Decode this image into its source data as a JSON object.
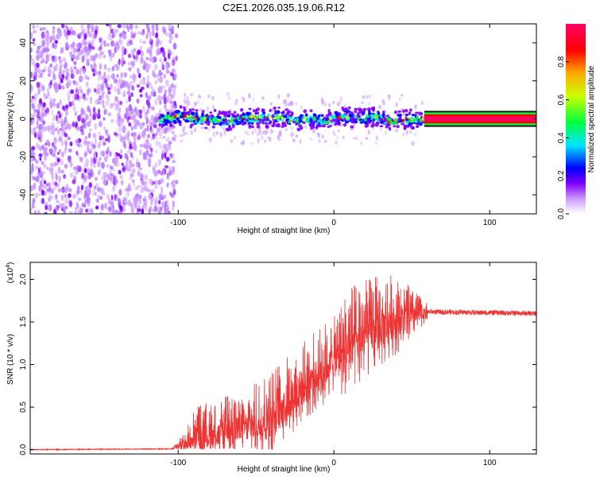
{
  "figure_title": "C2E1.2026.035.19.06.R12",
  "chart_data": [
    {
      "type": "heatmap",
      "title": "C2E1.2026.035.19.06.R12",
      "xlabel": "Height of straight line (km)",
      "ylabel": "Frequency (Hz)",
      "xlim": [
        -195,
        130
      ],
      "ylim": [
        -50,
        50
      ],
      "x_ticks": [
        -100,
        0,
        100
      ],
      "x_tick_labels": [
        "-100",
        "0",
        "100"
      ],
      "y_ticks": [
        -40,
        -20,
        0,
        20,
        40
      ],
      "y_tick_labels": [
        "-40",
        "-20",
        "0",
        "20",
        "40"
      ],
      "noise_region_x": [
        -195,
        -103
      ],
      "signal_region_x": [
        -112,
        58
      ],
      "straight_line_region_x": [
        58,
        130
      ],
      "signal_center_frequency": 0,
      "colorbar": {
        "label": "Normalized spectral amplitude",
        "range": [
          0,
          1
        ],
        "ticks": [
          0,
          0.2,
          0.4,
          0.6,
          0.8
        ],
        "tick_labels": [
          "0.0",
          "0.2",
          "0.4",
          "0.6",
          "0.8"
        ],
        "colors": [
          "#ffffff",
          "#cc99ff",
          "#8000ff",
          "#0000ff",
          "#00e5ff",
          "#00ff40",
          "#ccff00",
          "#ffaa00",
          "#ff0000",
          "#ff0066"
        ]
      }
    },
    {
      "type": "line",
      "xlabel": "Height of straight line (km)",
      "ylabel": "SNR (10 * v/v)",
      "y_multiplier_label": "(x10",
      "y_multiplier_exponent": "4",
      "xlim": [
        -195,
        130
      ],
      "ylim": [
        -0.05,
        2.2
      ],
      "x_ticks": [
        -100,
        0,
        100
      ],
      "x_tick_labels": [
        "-100",
        "0",
        "100"
      ],
      "y_ticks": [
        0,
        0.5,
        1,
        1.5,
        2
      ],
      "y_tick_labels": [
        "0.0",
        "0.5",
        "1.0",
        "1.5",
        "2.0"
      ],
      "line_color": "#ee3333",
      "series": [
        {
          "name": "SNR",
          "trend": [
            [
              -195,
              0.0
            ],
            [
              -104,
              0.01
            ],
            [
              -96,
              0.08
            ],
            [
              -88,
              0.2
            ],
            [
              -80,
              0.22
            ],
            [
              -70,
              0.25
            ],
            [
              -60,
              0.3
            ],
            [
              -50,
              0.35
            ],
            [
              -40,
              0.45
            ],
            [
              -30,
              0.62
            ],
            [
              -20,
              0.8
            ],
            [
              -10,
              0.95
            ],
            [
              0,
              1.1
            ],
            [
              10,
              1.28
            ],
            [
              20,
              1.42
            ],
            [
              30,
              1.52
            ],
            [
              40,
              1.58
            ],
            [
              50,
              1.6
            ],
            [
              60,
              1.62
            ],
            [
              130,
              1.6
            ]
          ],
          "peak_envelope": [
            [
              -104,
              0.02
            ],
            [
              -96,
              0.2
            ],
            [
              -88,
              0.55
            ],
            [
              -80,
              0.57
            ],
            [
              -70,
              0.65
            ],
            [
              -60,
              0.6
            ],
            [
              -50,
              0.8
            ],
            [
              -40,
              1.0
            ],
            [
              -30,
              1.1
            ],
            [
              -20,
              1.3
            ],
            [
              -10,
              1.45
            ],
            [
              0,
              1.55
            ],
            [
              10,
              1.95
            ],
            [
              20,
              2.0
            ],
            [
              30,
              2.1
            ],
            [
              40,
              2.05
            ],
            [
              50,
              1.9
            ],
            [
              60,
              1.72
            ],
            [
              130,
              1.66
            ]
          ]
        }
      ]
    }
  ]
}
